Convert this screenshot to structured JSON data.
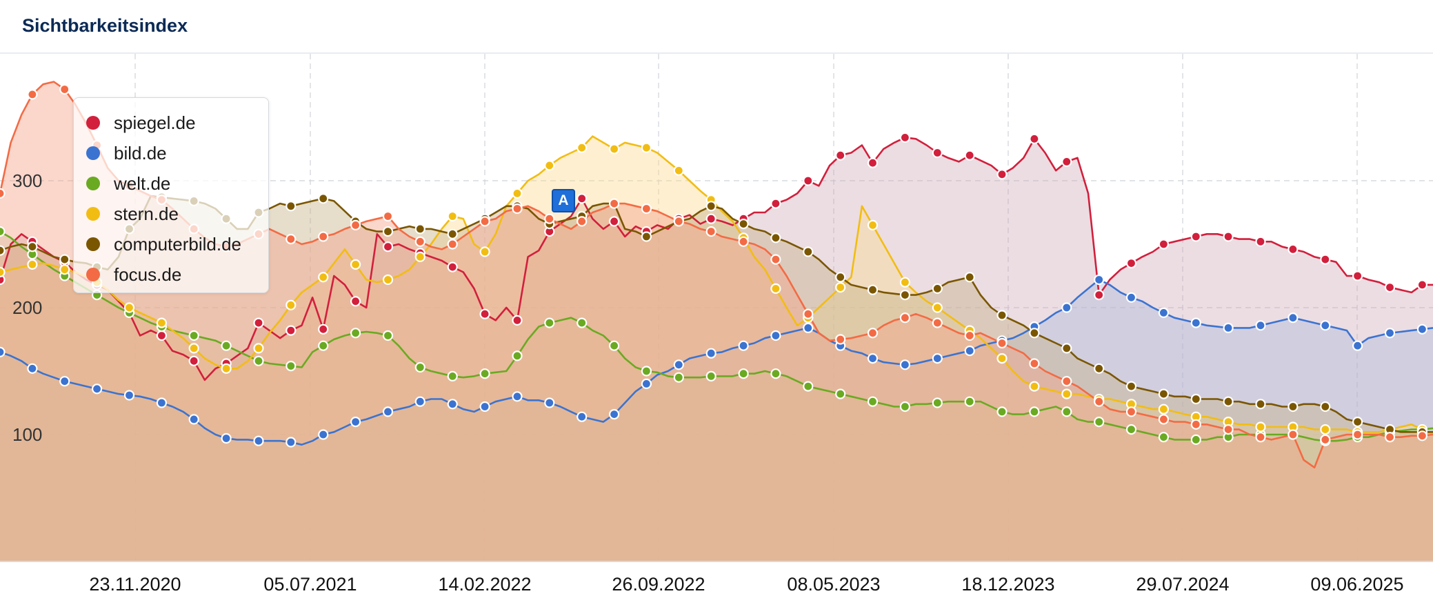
{
  "header": {
    "title": "Sichtbarkeitsindex"
  },
  "colors": {
    "spiegel": "#c8334a",
    "bild": "#3b73d1",
    "welt": "#6aaa22",
    "stern": "#f2bd12",
    "computerbild": "#7a5600",
    "focus": "#f36b44"
  },
  "chart_data": {
    "type": "area",
    "title": "Sichtbarkeitsindex",
    "xlabel": "",
    "ylabel": "",
    "ylim": [
      0,
      400
    ],
    "x_ticks": [
      "23.11.2020",
      "05.07.2021",
      "14.02.2022",
      "26.09.2022",
      "08.05.2023",
      "18.12.2023",
      "29.07.2024",
      "09.06.2025"
    ],
    "y_ticks": [
      100,
      200,
      300
    ],
    "grid": true,
    "legend_position": "top-left",
    "annotations": [
      {
        "label": "A",
        "series": "computerbild.de",
        "date": "2022-06"
      }
    ],
    "series": [
      {
        "key": "spiegel",
        "name": "spiegel.de",
        "color": "#d21f3c",
        "values": [
          222,
          250,
          258,
          252,
          246,
          240,
          236,
          228,
          222,
          218,
          214,
          205,
          196,
          178,
          182,
          178,
          166,
          163,
          158,
          143,
          152,
          156,
          162,
          168,
          188,
          182,
          176,
          182,
          186,
          208,
          183,
          225,
          218,
          205,
          200,
          258,
          248,
          250,
          246,
          243,
          240,
          237,
          232,
          228,
          215,
          195,
          190,
          200,
          190,
          240,
          245,
          260,
          266,
          272,
          286,
          270,
          262,
          268,
          256,
          264,
          260,
          265,
          262,
          270,
          273,
          266,
          270,
          268,
          265,
          270,
          275,
          275,
          282,
          285,
          290,
          300,
          296,
          312,
          320,
          322,
          328,
          314,
          325,
          330,
          334,
          333,
          328,
          322,
          318,
          315,
          320,
          316,
          312,
          305,
          310,
          318,
          333,
          322,
          308,
          315,
          318,
          290,
          210,
          222,
          230,
          235,
          240,
          244,
          250,
          252,
          254,
          256,
          258,
          258,
          256,
          254,
          254,
          252,
          252,
          248,
          246,
          244,
          240,
          238,
          236,
          225,
          225,
          222,
          220,
          216,
          214,
          212,
          218,
          218
        ]
      },
      {
        "key": "bild",
        "name": "bild.de",
        "color": "#3b73d1",
        "values": [
          165,
          162,
          158,
          152,
          148,
          145,
          142,
          140,
          138,
          136,
          134,
          132,
          131,
          130,
          128,
          125,
          122,
          118,
          112,
          105,
          100,
          97,
          96,
          96,
          95,
          95,
          95,
          94,
          92,
          95,
          100,
          102,
          106,
          110,
          112,
          115,
          118,
          120,
          122,
          126,
          128,
          128,
          124,
          120,
          118,
          122,
          126,
          128,
          130,
          127,
          127,
          125,
          122,
          118,
          114,
          112,
          110,
          116,
          125,
          134,
          140,
          147,
          150,
          155,
          160,
          162,
          164,
          165,
          168,
          170,
          172,
          176,
          178,
          180,
          182,
          184,
          180,
          174,
          170,
          166,
          164,
          160,
          157,
          156,
          155,
          156,
          158,
          160,
          162,
          164,
          166,
          170,
          172,
          174,
          176,
          180,
          185,
          190,
          196,
          200,
          208,
          215,
          222,
          218,
          212,
          208,
          205,
          200,
          196,
          192,
          190,
          188,
          186,
          185,
          184,
          184,
          184,
          186,
          188,
          190,
          192,
          190,
          188,
          186,
          184,
          182,
          170,
          176,
          178,
          180,
          181,
          182,
          183,
          184
        ]
      },
      {
        "key": "welt",
        "name": "welt.de",
        "color": "#6aaa22",
        "values": [
          260,
          255,
          248,
          242,
          236,
          230,
          225,
          220,
          215,
          210,
          205,
          200,
          196,
          192,
          188,
          185,
          182,
          180,
          178,
          176,
          174,
          170,
          166,
          162,
          158,
          156,
          155,
          154,
          153,
          165,
          170,
          175,
          178,
          180,
          181,
          180,
          178,
          170,
          160,
          153,
          150,
          148,
          146,
          145,
          146,
          148,
          149,
          150,
          162,
          175,
          185,
          188,
          190,
          192,
          188,
          182,
          178,
          170,
          160,
          153,
          150,
          149,
          146,
          145,
          145,
          145,
          146,
          146,
          146,
          148,
          148,
          150,
          148,
          146,
          142,
          138,
          136,
          134,
          132,
          130,
          128,
          126,
          124,
          122,
          122,
          124,
          124,
          125,
          126,
          126,
          126,
          126,
          122,
          118,
          116,
          116,
          118,
          120,
          122,
          118,
          112,
          110,
          110,
          108,
          106,
          104,
          102,
          100,
          98,
          96,
          96,
          96,
          96,
          98,
          98,
          100,
          100,
          100,
          100,
          100,
          100,
          98,
          96,
          95,
          95,
          96,
          98,
          98,
          100,
          102,
          103,
          104,
          104,
          105
        ]
      },
      {
        "key": "stern",
        "name": "stern.de",
        "color": "#f2bd12",
        "values": [
          228,
          230,
          232,
          234,
          235,
          233,
          230,
          228,
          224,
          220,
          214,
          206,
          200,
          196,
          192,
          188,
          182,
          176,
          168,
          160,
          155,
          152,
          152,
          158,
          168,
          180,
          190,
          202,
          212,
          218,
          224,
          235,
          246,
          234,
          222,
          220,
          222,
          225,
          230,
          240,
          250,
          262,
          272,
          270,
          250,
          244,
          258,
          280,
          290,
          300,
          305,
          312,
          318,
          322,
          326,
          335,
          330,
          325,
          330,
          328,
          326,
          322,
          315,
          308,
          300,
          292,
          285,
          276,
          268,
          255,
          240,
          230,
          215,
          200,
          186,
          192,
          200,
          208,
          216,
          224,
          280,
          265,
          250,
          235,
          220,
          212,
          205,
          200,
          194,
          188,
          182,
          176,
          168,
          160,
          150,
          142,
          138,
          136,
          134,
          132,
          132,
          130,
          128,
          128,
          126,
          124,
          122,
          120,
          120,
          118,
          116,
          114,
          114,
          112,
          110,
          108,
          108,
          106,
          106,
          106,
          106,
          106,
          104,
          104,
          104,
          104,
          102,
          102,
          102,
          104,
          106,
          108,
          104,
          100
        ]
      },
      {
        "key": "computerbild",
        "name": "computerbild.de",
        "color": "#7a5600",
        "values": [
          245,
          248,
          250,
          248,
          244,
          240,
          238,
          236,
          235,
          232,
          230,
          240,
          262,
          270,
          288,
          287,
          286,
          285,
          284,
          282,
          278,
          270,
          262,
          262,
          275,
          278,
          282,
          280,
          282,
          284,
          286,
          284,
          276,
          268,
          262,
          260,
          260,
          262,
          264,
          262,
          262,
          260,
          258,
          262,
          266,
          270,
          275,
          280,
          280,
          278,
          270,
          266,
          268,
          270,
          272,
          280,
          282,
          282,
          262,
          260,
          256,
          260,
          264,
          268,
          270,
          276,
          280,
          278,
          270,
          266,
          262,
          260,
          255,
          252,
          248,
          244,
          238,
          230,
          224,
          218,
          216,
          214,
          212,
          211,
          210,
          210,
          212,
          215,
          220,
          222,
          224,
          210,
          200,
          194,
          190,
          186,
          180,
          176,
          172,
          168,
          160,
          156,
          152,
          148,
          142,
          138,
          136,
          134,
          132,
          130,
          130,
          128,
          128,
          128,
          126,
          126,
          124,
          124,
          124,
          122,
          122,
          124,
          124,
          122,
          118,
          112,
          110,
          108,
          106,
          104,
          102,
          102,
          102,
          102
        ]
      },
      {
        "key": "focus",
        "name": "focus.de",
        "color": "#f36b44",
        "values": [
          290,
          330,
          352,
          368,
          376,
          378,
          372,
          360,
          345,
          328,
          310,
          300,
          296,
          292,
          288,
          285,
          278,
          270,
          262,
          255,
          250,
          248,
          250,
          254,
          258,
          262,
          258,
          254,
          250,
          252,
          256,
          258,
          262,
          265,
          268,
          270,
          272,
          262,
          256,
          252,
          248,
          246,
          250,
          256,
          262,
          268,
          270,
          276,
          278,
          280,
          276,
          270,
          266,
          262,
          268,
          275,
          278,
          282,
          282,
          280,
          278,
          276,
          272,
          268,
          266,
          262,
          260,
          256,
          254,
          252,
          250,
          246,
          238,
          225,
          210,
          195,
          180,
          174,
          175,
          176,
          178,
          180,
          186,
          190,
          192,
          195,
          192,
          188,
          184,
          180,
          178,
          180,
          176,
          172,
          168,
          164,
          156,
          150,
          146,
          142,
          138,
          132,
          126,
          120,
          118,
          118,
          116,
          114,
          112,
          110,
          110,
          108,
          108,
          106,
          104,
          104,
          100,
          98,
          96,
          98,
          100,
          80,
          74,
          96,
          98,
          100,
          100,
          100,
          100,
          98,
          98,
          99,
          99,
          100
        ]
      }
    ]
  }
}
